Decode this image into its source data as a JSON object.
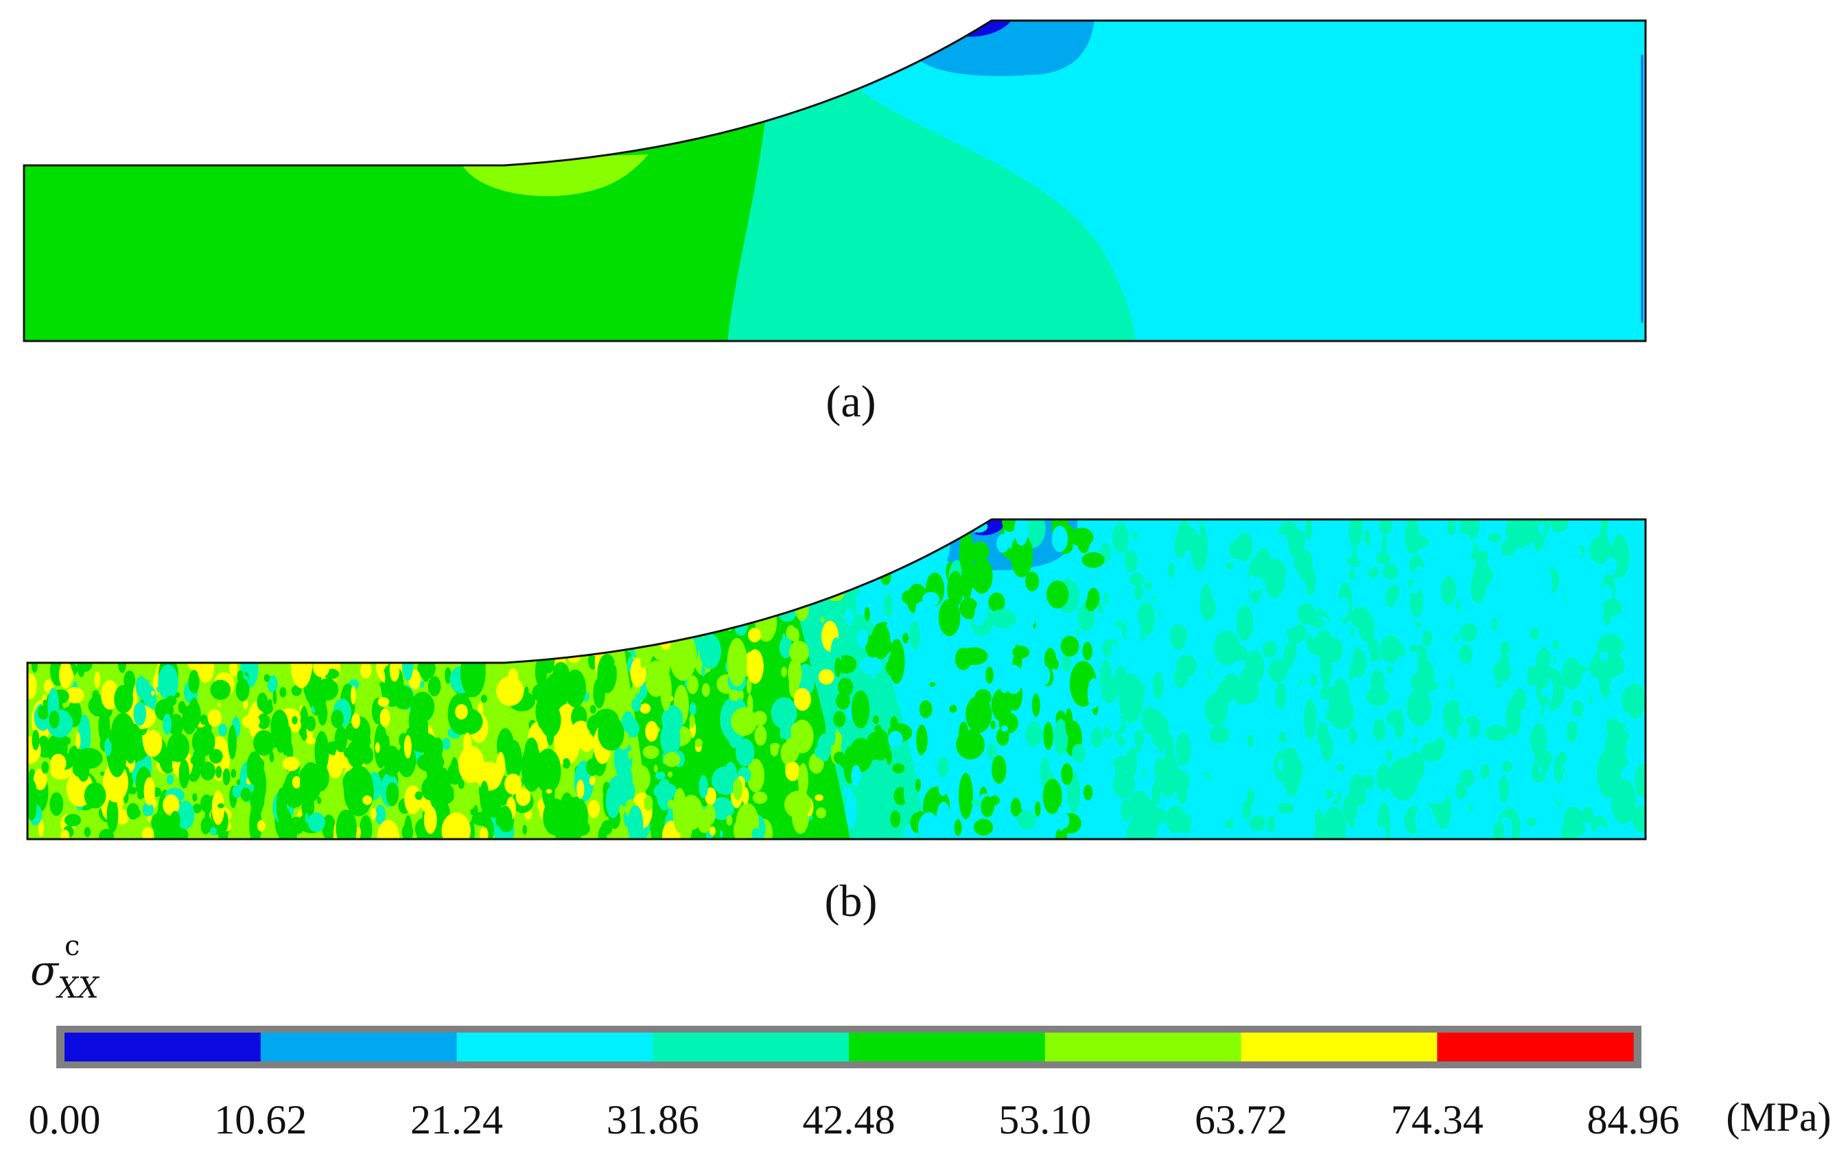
{
  "captions": {
    "a": "(a)",
    "b": "(b)"
  },
  "colorbar": {
    "symbol": "σ",
    "symbol_sub": "XX",
    "symbol_sup": "c",
    "unit": "(MPa)",
    "ticks": [
      "0.00",
      "10.62",
      "21.24",
      "31.86",
      "42.48",
      "53.10",
      "63.72",
      "74.34",
      "84.96"
    ],
    "colors": [
      "#0a0ae0",
      "#00a8f0",
      "#00f0ff",
      "#00f5b4",
      "#00e000",
      "#88ff00",
      "#ffff00",
      "#ff0000"
    ]
  },
  "contour_colors": {
    "blue": "#0a0ae0",
    "light_blue": "#00a8f0",
    "cyan": "#00f0ff",
    "aqua_green": "#00f5b4",
    "green": "#00e000",
    "yellow_green": "#88ff00",
    "yellow": "#ffff00"
  }
}
